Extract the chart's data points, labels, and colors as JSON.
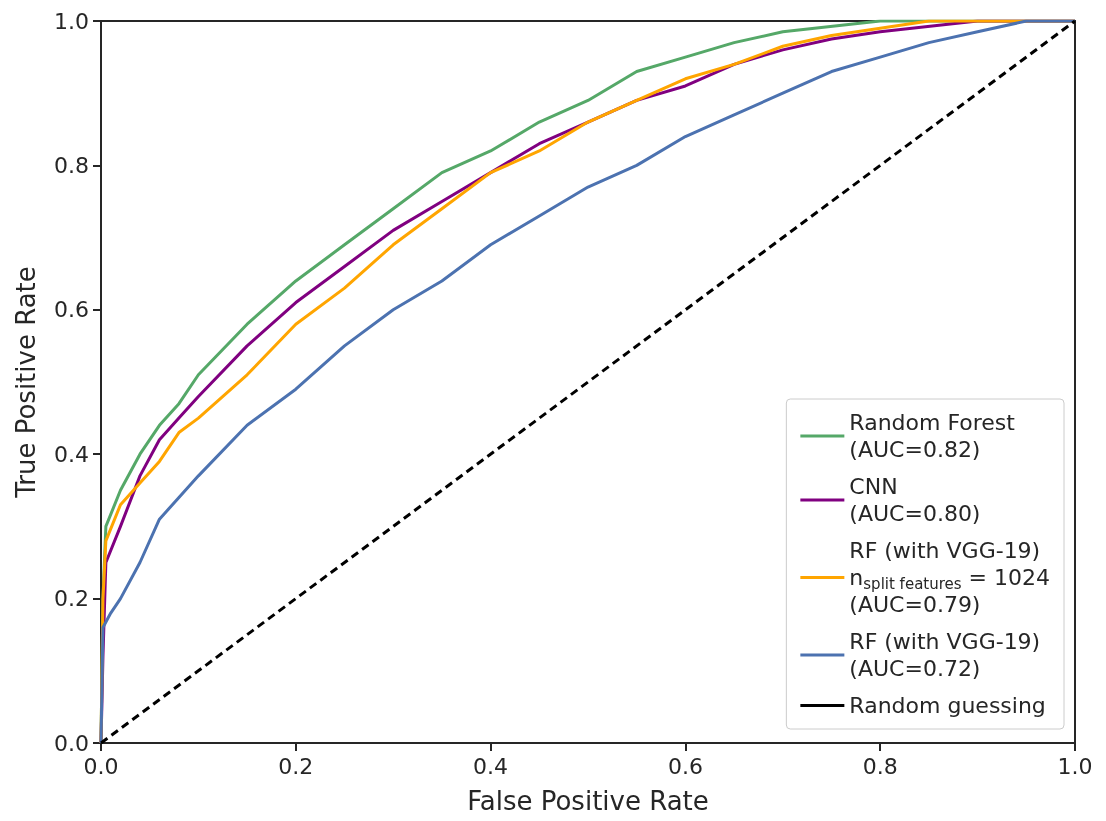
{
  "chart_data": {
    "type": "line",
    "xlabel": "False Positive Rate",
    "ylabel": "True Positive Rate",
    "xlim": [
      0,
      1
    ],
    "ylim": [
      0,
      1
    ],
    "xticks": [
      {
        "value": 0,
        "label": "0.0"
      },
      0.2,
      0.4,
      0.6,
      0.8,
      {
        "value": 1,
        "label": "1.0"
      }
    ],
    "yticks": [
      {
        "value": 0,
        "label": "0.0"
      },
      0.2,
      0.4,
      0.6,
      0.8,
      {
        "value": 1,
        "label": "1.0"
      }
    ],
    "grid": false,
    "legend": "bottom right",
    "marker": "none",
    "series": [
      {
        "name": "Random Forest\n(AUC=0.82)",
        "color": "#55a868",
        "x": [
          0,
          0.002,
          0.005,
          0.02,
          0.04,
          0.06,
          0.08,
          0.1,
          0.15,
          0.2,
          0.25,
          0.3,
          0.35,
          0.4,
          0.45,
          0.5,
          0.55,
          0.6,
          0.65,
          0.7,
          0.8,
          1
        ],
        "values": [
          0,
          0.2,
          0.3,
          0.35,
          0.4,
          0.44,
          0.47,
          0.51,
          0.58,
          0.64,
          0.69,
          0.74,
          0.79,
          0.82,
          0.86,
          0.89,
          0.93,
          0.95,
          0.97,
          0.985,
          1,
          1
        ]
      },
      {
        "name": "CNN\n(AUC=0.80)",
        "color": "#800080",
        "x": [
          0,
          0.002,
          0.005,
          0.02,
          0.04,
          0.06,
          0.08,
          0.1,
          0.15,
          0.2,
          0.25,
          0.3,
          0.35,
          0.4,
          0.45,
          0.5,
          0.55,
          0.6,
          0.65,
          0.7,
          0.75,
          0.8,
          0.9,
          1
        ],
        "values": [
          0,
          0.12,
          0.25,
          0.3,
          0.37,
          0.42,
          0.45,
          0.48,
          0.55,
          0.61,
          0.66,
          0.71,
          0.75,
          0.79,
          0.83,
          0.86,
          0.89,
          0.91,
          0.94,
          0.96,
          0.975,
          0.985,
          1,
          1
        ]
      },
      {
        "name": "RF (with VGG-19)\nn$_{split features}$ = 1024\n(AUC=0.79)",
        "color": "#ffa500",
        "x": [
          0,
          0.002,
          0.005,
          0.02,
          0.04,
          0.06,
          0.08,
          0.1,
          0.15,
          0.2,
          0.25,
          0.3,
          0.35,
          0.4,
          0.45,
          0.5,
          0.55,
          0.6,
          0.65,
          0.7,
          0.75,
          0.8,
          0.85,
          1
        ],
        "values": [
          0,
          0.2,
          0.28,
          0.33,
          0.36,
          0.39,
          0.43,
          0.45,
          0.51,
          0.58,
          0.63,
          0.69,
          0.74,
          0.79,
          0.82,
          0.86,
          0.89,
          0.92,
          0.94,
          0.965,
          0.98,
          0.99,
          1,
          1
        ]
      },
      {
        "name": "RF (with VGG-19)\n(AUC=0.72)",
        "color": "#4c72b0",
        "x": [
          0,
          0.002,
          0.01,
          0.02,
          0.04,
          0.06,
          0.08,
          0.1,
          0.15,
          0.2,
          0.25,
          0.3,
          0.35,
          0.4,
          0.45,
          0.5,
          0.55,
          0.6,
          0.65,
          0.7,
          0.75,
          0.8,
          0.85,
          0.9,
          0.95,
          1
        ],
        "values": [
          0,
          0.16,
          0.18,
          0.2,
          0.25,
          0.31,
          0.34,
          0.37,
          0.44,
          0.49,
          0.55,
          0.6,
          0.64,
          0.69,
          0.73,
          0.77,
          0.8,
          0.84,
          0.87,
          0.9,
          0.93,
          0.95,
          0.97,
          0.985,
          1,
          1
        ]
      },
      {
        "name": "Random guessing",
        "color": "#000000",
        "line_style": "dashed",
        "x": [
          0,
          1
        ],
        "values": [
          0,
          1
        ]
      }
    ]
  }
}
